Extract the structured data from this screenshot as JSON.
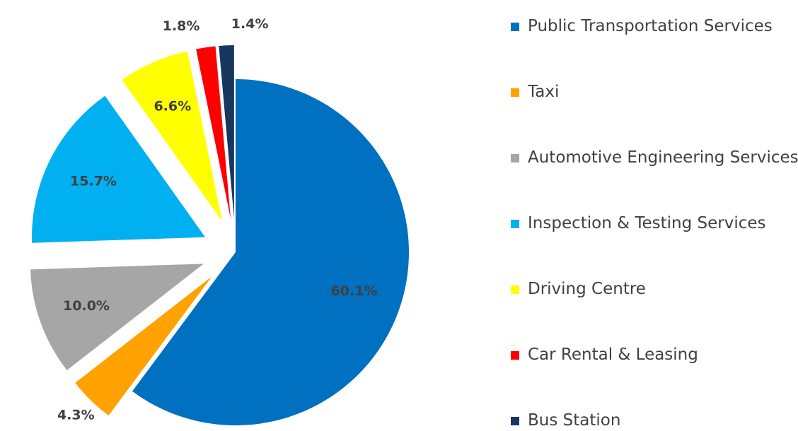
{
  "chart_data": {
    "type": "pie",
    "categories": [
      "Public Transportation Services",
      "Taxi",
      "Automotive Engineering Services",
      "Inspection & Testing Services",
      "Driving Centre",
      "Car Rental & Leasing",
      "Bus Station"
    ],
    "values": [
      60.1,
      4.3,
      10.0,
      15.7,
      6.6,
      1.8,
      1.4
    ],
    "value_labels": [
      "60.1%",
      "4.3%",
      "10.0%",
      "15.7%",
      "6.6%",
      "1.8%",
      "1.4%"
    ],
    "colors": [
      "#0070c0",
      "#ffa200",
      "#a6a6a6",
      "#00b0f0",
      "#ffff00",
      "#ff0000",
      "#17375e"
    ],
    "legend": "right"
  }
}
